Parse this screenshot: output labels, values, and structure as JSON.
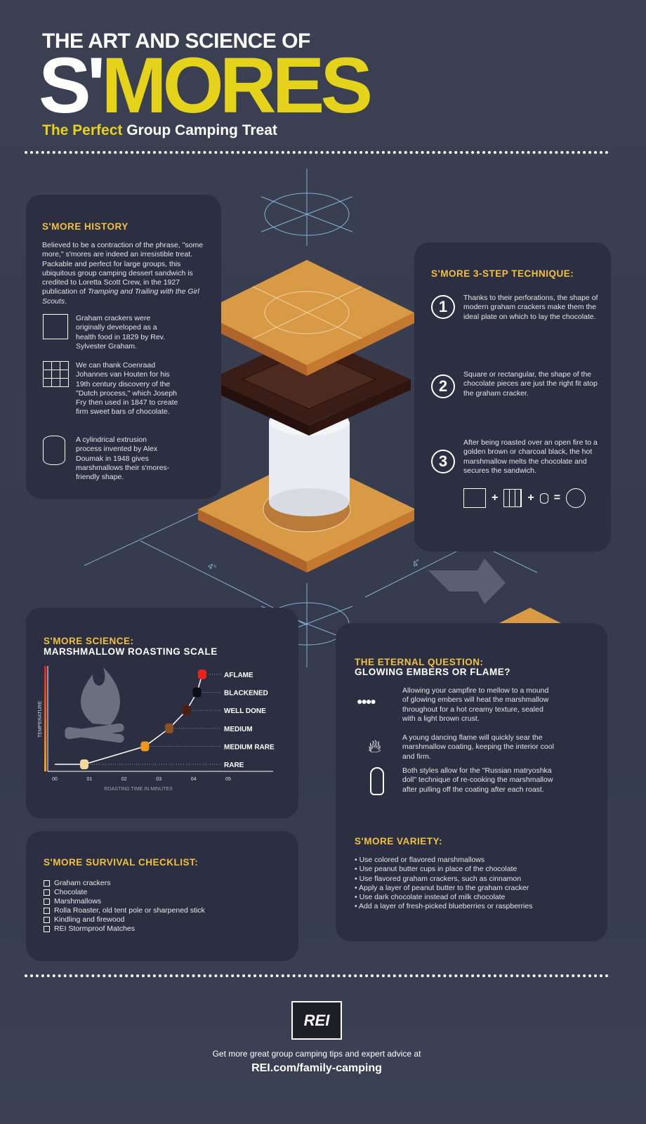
{
  "header": {
    "line1": "THE ART AND SCIENCE OF",
    "smores_s": "S'",
    "smores_rest": "MORES",
    "subtitle_accent": "The Perfect",
    "subtitle_rest": "Group Camping Treat"
  },
  "colors": {
    "background": "#373c4f",
    "panel": "#2c2f41",
    "accent_yellow": "#e5d21a",
    "heading_gold": "#f2c040",
    "cracker": "#d99a45",
    "chocolate": "#3a1d17",
    "blueprint": "#7fb4d6"
  },
  "illustration": {
    "dimension_left": "4\"",
    "dimension_right": "4\""
  },
  "history": {
    "title": "S'MORE HISTORY",
    "intro": "Believed to be a contraction of the phrase, \"some more,\" s'mores are indeed an irresistible treat. Packable and perfect for large groups, this ubiquitous group camping dessert sandwich is credited to Loretta Scott Crew, in the 1927 publication of",
    "intro_italic": "Tramping and Trailing with the Girl Scouts",
    "facts": [
      {
        "icon": "graham-cracker-icon",
        "text": "Graham crackers were originally developed as a health food in 1829 by Rev. Sylvester Graham."
      },
      {
        "icon": "chocolate-bar-icon",
        "text": "We can thank Coenraad Johannes van Houten for his 19th century discovery of the \"Dutch process,\" which Joseph Fry then used in 1847 to create firm sweet bars of chocolate."
      },
      {
        "icon": "marshmallow-icon",
        "text": "A cylindrical extrusion process invented by Alex Doumak in 1948 gives marshmallows their s'mores-friendly shape."
      }
    ]
  },
  "technique": {
    "title": "S'MORE 3-STEP TECHNIQUE:",
    "steps": [
      {
        "n": "1",
        "text": "Thanks to their perforations, the shape of modern graham crackers make them the ideal plate on which to lay the chocolate."
      },
      {
        "n": "2",
        "text": "Square or rectangular, the shape of the chocolate pieces are just the right fit atop the graham cracker."
      },
      {
        "n": "3",
        "text": "After being roasted over an open fire to a golden brown or charcoal black, the hot marshmallow melts the chocolate and secures the sandwich."
      }
    ],
    "equation": {
      "plus": "+",
      "equals": "="
    }
  },
  "science": {
    "title1": "S'MORE SCIENCE:",
    "title2": "MARSHMALLOW ROASTING SCALE"
  },
  "chart_data": {
    "type": "scatter",
    "xlabel": "ROASTING TIME IN  MINUTES",
    "ylabel": "TEMPERATURE",
    "x_ticks": [
      "00",
      "01",
      "02",
      "03",
      "04",
      "05"
    ],
    "xlim": [
      0,
      6.5
    ],
    "grid": false,
    "points": [
      {
        "label": "RARE",
        "minutes": 0.85,
        "level": 1,
        "color": "#f3d79a"
      },
      {
        "label": "MEDIUM RARE",
        "minutes": 2.6,
        "level": 2,
        "color": "#f0961e"
      },
      {
        "label": "MEDIUM",
        "minutes": 3.3,
        "level": 3,
        "color": "#8a5224"
      },
      {
        "label": "WELL DONE",
        "minutes": 3.8,
        "level": 4,
        "color": "#4a1f12"
      },
      {
        "label": "BLACKENED",
        "minutes": 4.1,
        "level": 5,
        "color": "#0d0d16"
      },
      {
        "label": "AFLAME",
        "minutes": 4.25,
        "level": 6,
        "color": "#e52420"
      }
    ]
  },
  "checklist": {
    "title": "S'MORE SURVIVAL CHECKLIST:",
    "items": [
      "Graham crackers",
      "Chocolate",
      "Marshmallows",
      "Rolla Roaster, old tent pole or sharpened stick",
      "Kindling and firewood",
      "REI Stormproof Matches"
    ]
  },
  "eternal": {
    "title1": "THE ETERNAL QUESTION:",
    "title2": "GLOWING EMBERS OR FLAME?",
    "items": [
      {
        "icon": "embers-icon",
        "text": "Allowing your campfire to mellow to a mound of glowing embers will heat the marshmallow throughout for a hot creamy texture, sealed with a light brown crust."
      },
      {
        "icon": "flame-icon",
        "text": "A young dancing flame will quickly sear the marshmallow coating, keeping the interior cool and firm."
      },
      {
        "icon": "matryoshka-doll-icon",
        "text": "Both styles allow for the \"Russian matryoshka doll\" technique of re-cooking the marshmallow after pulling off the coating after each roast."
      }
    ]
  },
  "variety": {
    "title": "S'MORE VARIETY:",
    "items": [
      "Use colored or flavored marshmallows",
      "Use peanut butter cups in place of the chocolate",
      "Use flavored graham crackers, such as cinnamon",
      "Apply a layer of peanut butter to the graham cracker",
      "Use dark chocolate instead of milk chocolate",
      "Add a layer of fresh-picked blueberries or raspberries"
    ],
    "bullet": "•"
  },
  "footer": {
    "logo": "REI",
    "text": "Get more great group camping tips and expert advice at",
    "link": "REI.com/family-camping"
  }
}
